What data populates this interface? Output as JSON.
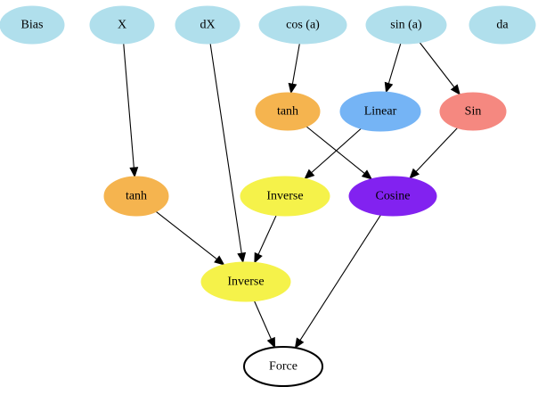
{
  "graph": {
    "nodes": [
      {
        "id": "bias",
        "label": "Bias",
        "color": "#b0dfec",
        "style": "filled"
      },
      {
        "id": "x",
        "label": "X",
        "color": "#b0dfec",
        "style": "filled"
      },
      {
        "id": "dx",
        "label": "dX",
        "color": "#b0dfec",
        "style": "filled"
      },
      {
        "id": "cosa",
        "label": "cos (a)",
        "color": "#b0dfec",
        "style": "filled"
      },
      {
        "id": "sina",
        "label": "sin (a)",
        "color": "#b0dfec",
        "style": "filled"
      },
      {
        "id": "da",
        "label": "da",
        "color": "#b0dfec",
        "style": "filled"
      },
      {
        "id": "tanh1",
        "label": "tanh",
        "color": "#f5b44f",
        "style": "filled"
      },
      {
        "id": "linear",
        "label": "Linear",
        "color": "#75b4f5",
        "style": "filled"
      },
      {
        "id": "sin",
        "label": "Sin",
        "color": "#f58880",
        "style": "filled"
      },
      {
        "id": "tanh2",
        "label": "tanh",
        "color": "#f5b44f",
        "style": "filled"
      },
      {
        "id": "inverse1",
        "label": "Inverse",
        "color": "#f5f24a",
        "style": "filled"
      },
      {
        "id": "cosine",
        "label": "Cosine",
        "color": "#8222f0",
        "style": "filled"
      },
      {
        "id": "inverse2",
        "label": "Inverse",
        "color": "#f5f24a",
        "style": "filled"
      },
      {
        "id": "force",
        "label": "Force",
        "color": "#ffffff",
        "style": "outline"
      }
    ],
    "edges": [
      {
        "from": "x",
        "to": "tanh2"
      },
      {
        "from": "dx",
        "to": "inverse2"
      },
      {
        "from": "cosa",
        "to": "tanh1"
      },
      {
        "from": "sina",
        "to": "linear"
      },
      {
        "from": "sina",
        "to": "sin"
      },
      {
        "from": "tanh1",
        "to": "cosine"
      },
      {
        "from": "linear",
        "to": "inverse1"
      },
      {
        "from": "sin",
        "to": "cosine"
      },
      {
        "from": "tanh2",
        "to": "inverse2"
      },
      {
        "from": "inverse1",
        "to": "inverse2"
      },
      {
        "from": "cosine",
        "to": "force"
      },
      {
        "from": "inverse2",
        "to": "force"
      }
    ]
  }
}
